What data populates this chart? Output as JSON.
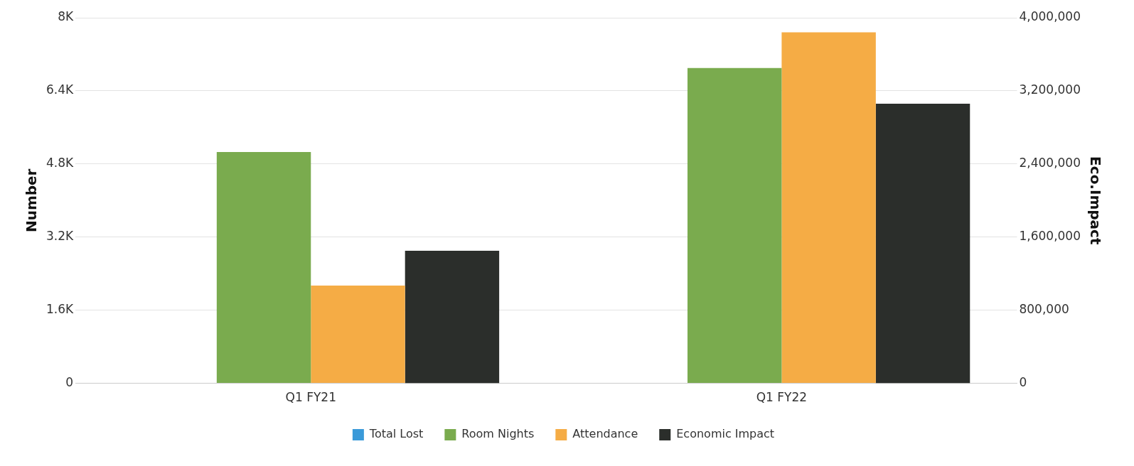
{
  "chart_data": {
    "type": "bar",
    "categories": [
      "Q1 FY21",
      "Q1 FY22"
    ],
    "series": [
      {
        "name": "Total Lost",
        "color": "#3a9ad9",
        "values": [
          0,
          0
        ]
      },
      {
        "name": "Room Nights",
        "color": "#7aab4e",
        "values": [
          5060,
          6900
        ]
      },
      {
        "name": "Attendance",
        "color": "#f5ac45",
        "values": [
          2140,
          7680
        ]
      },
      {
        "name": "Economic Impact",
        "color": "#2b2e2b",
        "values": [
          1450000,
          3060000
        ],
        "axis": "y2"
      }
    ],
    "ylabel": "Number",
    "y2label": "Eco.Impact",
    "ylim": [
      0,
      8000
    ],
    "yticks": [
      {
        "value": 0,
        "label": "0"
      },
      {
        "value": 1600,
        "label": "1.6K"
      },
      {
        "value": 3200,
        "label": "3.2K"
      },
      {
        "value": 4800,
        "label": "4.8K"
      },
      {
        "value": 6400,
        "label": "6.4K"
      },
      {
        "value": 8000,
        "label": "8K"
      }
    ],
    "y2lim": [
      0,
      4000000
    ],
    "y2ticks": [
      {
        "value": 0,
        "label": "0"
      },
      {
        "value": 800000,
        "label": "800,000"
      },
      {
        "value": 1600000,
        "label": "1,600,000"
      },
      {
        "value": 2400000,
        "label": "2,400,000"
      },
      {
        "value": 3200000,
        "label": "3,200,000"
      },
      {
        "value": 4000000,
        "label": "4,000,000"
      }
    ],
    "grid": "y",
    "legend": "bottom"
  }
}
